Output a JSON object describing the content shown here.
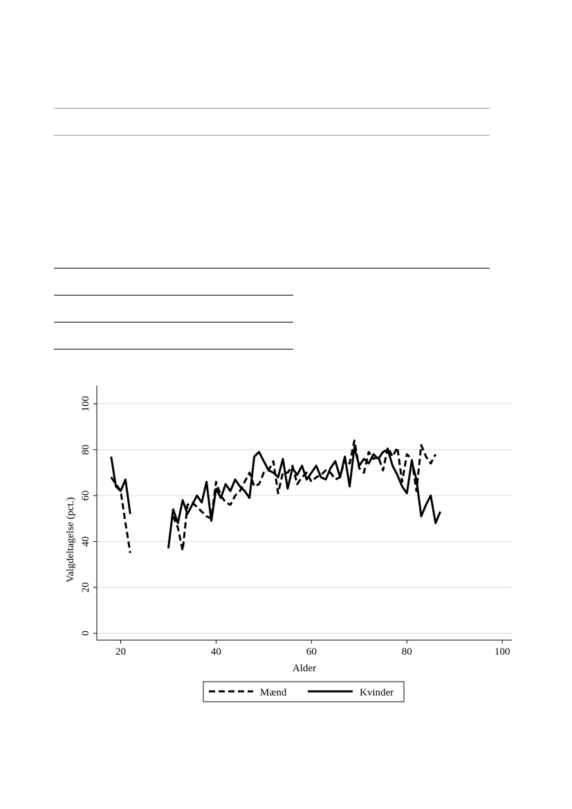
{
  "chart_data": {
    "type": "line",
    "xlabel": "Alder",
    "ylabel": "Valgdeltagelse (pct.)",
    "xlim": [
      15,
      102
    ],
    "ylim": [
      -3,
      108
    ],
    "xticks": [
      20,
      40,
      60,
      80,
      100
    ],
    "yticks": [
      0,
      20,
      40,
      60,
      80,
      100
    ],
    "grid": true,
    "legend_position": "bottom-center",
    "series": [
      {
        "name": "Mænd",
        "style": "dashed",
        "points": [
          [
            [
              18,
              68
            ],
            [
              19,
              65
            ],
            [
              20,
              62
            ],
            [
              21,
              48
            ],
            [
              22,
              35
            ]
          ],
          [
            [
              31,
              51
            ],
            [
              32,
              46
            ],
            [
              33,
              36
            ],
            [
              34,
              56
            ],
            [
              35,
              57
            ],
            [
              36,
              55
            ],
            [
              37,
              53
            ],
            [
              38,
              51
            ],
            [
              39,
              50
            ],
            [
              40,
              66
            ],
            [
              41,
              60
            ],
            [
              42,
              57
            ],
            [
              43,
              56
            ],
            [
              44,
              60
            ],
            [
              45,
              62
            ],
            [
              46,
              66
            ],
            [
              47,
              70
            ],
            [
              48,
              64
            ],
            [
              49,
              65
            ],
            [
              50,
              70
            ],
            [
              51,
              71
            ],
            [
              52,
              75
            ],
            [
              53,
              61
            ],
            [
              54,
              70
            ],
            [
              55,
              70
            ],
            [
              56,
              73
            ],
            [
              57,
              65
            ],
            [
              58,
              68
            ],
            [
              59,
              70
            ],
            [
              60,
              66
            ],
            [
              61,
              68
            ],
            [
              62,
              69
            ],
            [
              63,
              71
            ],
            [
              64,
              70
            ],
            [
              65,
              67
            ],
            [
              66,
              68
            ],
            [
              67,
              76
            ],
            [
              68,
              74
            ],
            [
              69,
              84
            ],
            [
              70,
              72
            ],
            [
              71,
              70
            ],
            [
              72,
              79
            ],
            [
              73,
              76
            ],
            [
              74,
              77
            ],
            [
              75,
              71
            ],
            [
              76,
              81
            ],
            [
              77,
              77
            ],
            [
              78,
              81
            ],
            [
              79,
              66
            ],
            [
              80,
              78
            ],
            [
              81,
              76
            ],
            [
              82,
              62
            ],
            [
              83,
              82
            ],
            [
              84,
              77
            ],
            [
              85,
              74
            ],
            [
              86,
              78
            ]
          ]
        ]
      },
      {
        "name": "Kvinder",
        "style": "solid",
        "points": [
          [
            [
              18,
              77
            ],
            [
              19,
              64
            ],
            [
              20,
              62
            ],
            [
              21,
              67
            ],
            [
              22,
              52
            ]
          ],
          [
            [
              30,
              37
            ],
            [
              31,
              54
            ],
            [
              32,
              48
            ],
            [
              33,
              58
            ],
            [
              34,
              52
            ],
            [
              35,
              56
            ],
            [
              36,
              60
            ],
            [
              37,
              57
            ],
            [
              38,
              66
            ],
            [
              39,
              49
            ],
            [
              40,
              63
            ],
            [
              41,
              59
            ],
            [
              42,
              65
            ],
            [
              43,
              62
            ],
            [
              44,
              67
            ],
            [
              45,
              64
            ],
            [
              46,
              62
            ],
            [
              47,
              59
            ],
            [
              48,
              77
            ],
            [
              49,
              79
            ],
            [
              50,
              75
            ],
            [
              51,
              71
            ],
            [
              52,
              70
            ],
            [
              53,
              68
            ],
            [
              54,
              76
            ],
            [
              55,
              63
            ],
            [
              56,
              72
            ],
            [
              57,
              69
            ],
            [
              58,
              73
            ],
            [
              59,
              67
            ],
            [
              60,
              70
            ],
            [
              61,
              73
            ],
            [
              62,
              68
            ],
            [
              63,
              67
            ],
            [
              64,
              72
            ],
            [
              65,
              75
            ],
            [
              66,
              68
            ],
            [
              67,
              77
            ],
            [
              68,
              64
            ],
            [
              69,
              81
            ],
            [
              70,
              73
            ],
            [
              71,
              76
            ],
            [
              72,
              74
            ],
            [
              73,
              78
            ],
            [
              74,
              76
            ],
            [
              75,
              79
            ],
            [
              76,
              80
            ],
            [
              77,
              73
            ],
            [
              78,
              69
            ],
            [
              79,
              64
            ],
            [
              80,
              61
            ],
            [
              81,
              75
            ],
            [
              82,
              67
            ],
            [
              83,
              51
            ],
            [
              84,
              56
            ],
            [
              85,
              60
            ],
            [
              86,
              48
            ],
            [
              87,
              53
            ]
          ]
        ]
      }
    ]
  }
}
